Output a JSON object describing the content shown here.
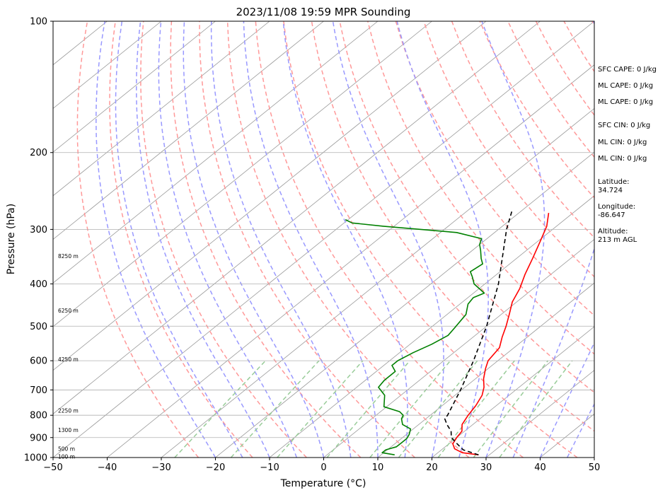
{
  "chart_data": {
    "type": "line",
    "title": "2023/11/08 19:59 MPR Sounding",
    "xlabel": "Temperature (°C)",
    "ylabel": "Pressure (hPa)",
    "xlim": [
      -50,
      50
    ],
    "ylim": [
      1000,
      100
    ],
    "y_scale": "log",
    "grid": true,
    "x_ticks": [
      -50,
      -40,
      -30,
      -20,
      -10,
      0,
      10,
      20,
      30,
      40,
      50
    ],
    "y_ticks": [
      100,
      200,
      300,
      400,
      500,
      600,
      700,
      800,
      900,
      1000
    ],
    "series": [
      {
        "key": "temperature",
        "color": "#ff0000",
        "points": [
          {
            "p": 986,
            "t": 28.0
          },
          {
            "p": 975,
            "t": 24.5
          },
          {
            "p": 955,
            "t": 22.2
          },
          {
            "p": 930,
            "t": 20.7
          },
          {
            "p": 900,
            "t": 20.0
          },
          {
            "p": 870,
            "t": 19.5
          },
          {
            "p": 840,
            "t": 18.0
          },
          {
            "p": 800,
            "t": 17.0
          },
          {
            "p": 760,
            "t": 16.2
          },
          {
            "p": 720,
            "t": 15.0
          },
          {
            "p": 690,
            "t": 13.5
          },
          {
            "p": 660,
            "t": 11.5
          },
          {
            "p": 625,
            "t": 9.5
          },
          {
            "p": 600,
            "t": 8.2
          },
          {
            "p": 560,
            "t": 7.3
          },
          {
            "p": 530,
            "t": 5.4
          },
          {
            "p": 500,
            "t": 3.6
          },
          {
            "p": 470,
            "t": 1.5
          },
          {
            "p": 440,
            "t": -0.8
          },
          {
            "p": 410,
            "t": -2.5
          },
          {
            "p": 380,
            "t": -4.8
          },
          {
            "p": 350,
            "t": -7.0
          },
          {
            "p": 320,
            "t": -9.5
          },
          {
            "p": 295,
            "t": -11.8
          },
          {
            "p": 275,
            "t": -14.5
          }
        ]
      },
      {
        "key": "dewpoint",
        "color": "#008000",
        "points": [
          {
            "p": 986,
            "t": 12.5
          },
          {
            "p": 975,
            "t": 9.7
          },
          {
            "p": 960,
            "t": 9.7
          },
          {
            "p": 945,
            "t": 11.0
          },
          {
            "p": 925,
            "t": 11.0
          },
          {
            "p": 905,
            "t": 11.0
          },
          {
            "p": 885,
            "t": 10.5
          },
          {
            "p": 860,
            "t": 9.5
          },
          {
            "p": 840,
            "t": 7.0
          },
          {
            "p": 815,
            "t": 5.5
          },
          {
            "p": 800,
            "t": 5.0
          },
          {
            "p": 785,
            "t": 3.5
          },
          {
            "p": 765,
            "t": -0.5
          },
          {
            "p": 720,
            "t": -3.0
          },
          {
            "p": 690,
            "t": -6.0
          },
          {
            "p": 665,
            "t": -6.5
          },
          {
            "p": 635,
            "t": -6.5
          },
          {
            "p": 615,
            "t": -8.5
          },
          {
            "p": 600,
            "t": -8.5
          },
          {
            "p": 575,
            "t": -7.5
          },
          {
            "p": 550,
            "t": -6.0
          },
          {
            "p": 525,
            "t": -5.0
          },
          {
            "p": 505,
            "t": -5.5
          },
          {
            "p": 470,
            "t": -6.5
          },
          {
            "p": 445,
            "t": -8.5
          },
          {
            "p": 430,
            "t": -9.0
          },
          {
            "p": 420,
            "t": -8.0
          },
          {
            "p": 400,
            "t": -12.0
          },
          {
            "p": 385,
            "t": -14.0
          },
          {
            "p": 375,
            "t": -15.5
          },
          {
            "p": 360,
            "t": -15.0
          },
          {
            "p": 350,
            "t": -16.5
          },
          {
            "p": 335,
            "t": -18.5
          },
          {
            "p": 325,
            "t": -20.0
          },
          {
            "p": 315,
            "t": -21.0
          },
          {
            "p": 305,
            "t": -27.0
          },
          {
            "p": 295,
            "t": -42.0
          },
          {
            "p": 290,
            "t": -48.5
          },
          {
            "p": 285,
            "t": -50.5
          }
        ]
      },
      {
        "key": "parcel",
        "color": "#000000",
        "dashed": true,
        "points": [
          {
            "p": 986,
            "t": 28.0
          },
          {
            "p": 960,
            "t": 24.0
          },
          {
            "p": 930,
            "t": 21.5
          },
          {
            "p": 900,
            "t": 19.0
          },
          {
            "p": 870,
            "t": 17.5
          },
          {
            "p": 840,
            "t": 15.2
          },
          {
            "p": 815,
            "t": 13.5
          },
          {
            "p": 800,
            "t": 13.2
          },
          {
            "p": 700,
            "t": 9.8
          },
          {
            "p": 600,
            "t": 5.5
          },
          {
            "p": 500,
            "t": 0.0
          },
          {
            "p": 400,
            "t": -7.5
          },
          {
            "p": 300,
            "t": -18.5
          },
          {
            "p": 270,
            "t": -22.0
          }
        ]
      }
    ],
    "height_labels": [
      {
        "text": "8250 m",
        "p": 345
      },
      {
        "text": "6250 m",
        "p": 460
      },
      {
        "text": "4250 m",
        "p": 595
      },
      {
        "text": "2250 m",
        "p": 780
      },
      {
        "text": "1300 m",
        "p": 865
      },
      {
        "text": "500 m",
        "p": 955
      },
      {
        "text": "100 m",
        "p": 995
      }
    ],
    "background_lines": {
      "isotherms_color": "#999999",
      "dry_adiabats_color": "#ff9999",
      "moist_adiabats_color": "#9999ff",
      "mixing_ratio_color": "#99cc99"
    }
  },
  "side_panel": {
    "sfc_cape": "SFC CAPE: 0 J/kg",
    "ml_cape_1": "ML CAPE: 0 J/kg",
    "ml_cape_2": "ML CAPE: 0 J/kg",
    "sfc_cin": "SFC CIN: 0 J/kg",
    "ml_cin_1": "ML CIN: 0 J/kg",
    "ml_cin_2": "ML CIN: 0 J/kg",
    "latitude": "Latitude:\n34.724",
    "longitude": "Longitude:\n-86.647",
    "altitude": "Altitude:\n213 m AGL"
  }
}
